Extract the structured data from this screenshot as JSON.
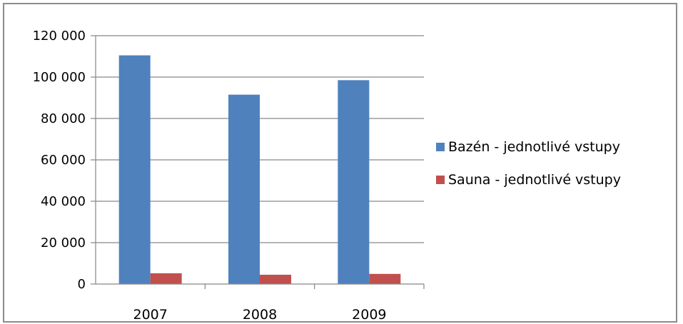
{
  "chart_data": {
    "type": "bar",
    "categories": [
      "2007",
      "2008",
      "2009"
    ],
    "series": [
      {
        "name": "Bazén -  jednotlivé vstupy",
        "values": [
          110500,
          91500,
          98500
        ],
        "color": "#4f81bd"
      },
      {
        "name": "Sauna - jednotlivé vstupy",
        "values": [
          5200,
          4500,
          4900
        ],
        "color": "#c0504d"
      }
    ],
    "y_ticks": [
      "0",
      "20 000",
      "40 000",
      "60 000",
      "80 000",
      "100 000",
      "120 000"
    ],
    "ylim": [
      0,
      120000
    ],
    "grid": true,
    "legend": "right",
    "title": "",
    "xlabel": "",
    "ylabel": ""
  }
}
